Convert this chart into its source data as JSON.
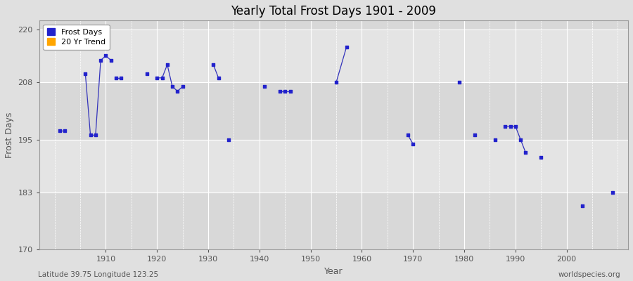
{
  "title": "Yearly Total Frost Days 1901 - 2009",
  "xlabel": "Year",
  "ylabel": "Frost Days",
  "xlim": [
    1897,
    2012
  ],
  "ylim": [
    170,
    222
  ],
  "yticks": [
    170,
    183,
    195,
    208,
    220
  ],
  "xticks": [
    1910,
    1920,
    1930,
    1940,
    1950,
    1960,
    1970,
    1980,
    1990,
    2000
  ],
  "outer_bg": "#e0e0e0",
  "plot_bg_dark": "#d8d8d8",
  "plot_bg_light": "#e8e8e8",
  "grid_color": "#ffffff",
  "line_color": "#3333bb",
  "marker_color": "#2222cc",
  "subtitle": "Latitude 39.75 Longitude 123.25",
  "watermark": "worldspecies.org",
  "data_points": [
    [
      1901,
      197
    ],
    [
      1902,
      197
    ],
    [
      1906,
      210
    ],
    [
      1907,
      196
    ],
    [
      1908,
      196
    ],
    [
      1909,
      213
    ],
    [
      1910,
      214
    ],
    [
      1911,
      213
    ],
    [
      1912,
      209
    ],
    [
      1913,
      209
    ],
    [
      1918,
      210
    ],
    [
      1920,
      209
    ],
    [
      1921,
      209
    ],
    [
      1922,
      212
    ],
    [
      1923,
      207
    ],
    [
      1924,
      206
    ],
    [
      1925,
      207
    ],
    [
      1931,
      212
    ],
    [
      1932,
      209
    ],
    [
      1934,
      195
    ],
    [
      1941,
      207
    ],
    [
      1944,
      206
    ],
    [
      1945,
      206
    ],
    [
      1946,
      206
    ],
    [
      1955,
      208
    ],
    [
      1957,
      216
    ],
    [
      1969,
      196
    ],
    [
      1970,
      194
    ],
    [
      1979,
      208
    ],
    [
      1982,
      196
    ],
    [
      1986,
      195
    ],
    [
      1988,
      198
    ],
    [
      1989,
      198
    ],
    [
      1990,
      198
    ],
    [
      1991,
      195
    ],
    [
      1992,
      192
    ],
    [
      1995,
      191
    ],
    [
      2003,
      180
    ],
    [
      2009,
      183
    ]
  ],
  "connected_segments": [
    [
      [
        1901,
        197
      ],
      [
        1902,
        197
      ]
    ],
    [
      [
        1906,
        210
      ],
      [
        1907,
        196
      ],
      [
        1908,
        196
      ],
      [
        1909,
        213
      ],
      [
        1910,
        214
      ],
      [
        1911,
        213
      ]
    ],
    [
      [
        1912,
        209
      ],
      [
        1913,
        209
      ]
    ],
    [
      [
        1918,
        210
      ]
    ],
    [
      [
        1920,
        209
      ],
      [
        1921,
        209
      ],
      [
        1922,
        212
      ],
      [
        1923,
        207
      ],
      [
        1924,
        206
      ],
      [
        1925,
        207
      ]
    ],
    [
      [
        1931,
        212
      ],
      [
        1932,
        209
      ]
    ],
    [
      [
        1934,
        195
      ]
    ],
    [
      [
        1941,
        207
      ]
    ],
    [
      [
        1944,
        206
      ],
      [
        1945,
        206
      ],
      [
        1946,
        206
      ]
    ],
    [
      [
        1955,
        208
      ],
      [
        1957,
        216
      ]
    ],
    [
      [
        1969,
        196
      ],
      [
        1970,
        194
      ]
    ],
    [
      [
        1979,
        208
      ]
    ],
    [
      [
        1982,
        196
      ]
    ],
    [
      [
        1986,
        195
      ]
    ],
    [
      [
        1988,
        198
      ],
      [
        1989,
        198
      ],
      [
        1990,
        198
      ],
      [
        1991,
        195
      ],
      [
        1992,
        192
      ]
    ],
    [
      [
        1995,
        191
      ]
    ],
    [
      [
        2003,
        180
      ]
    ],
    [
      [
        2009,
        183
      ]
    ]
  ]
}
